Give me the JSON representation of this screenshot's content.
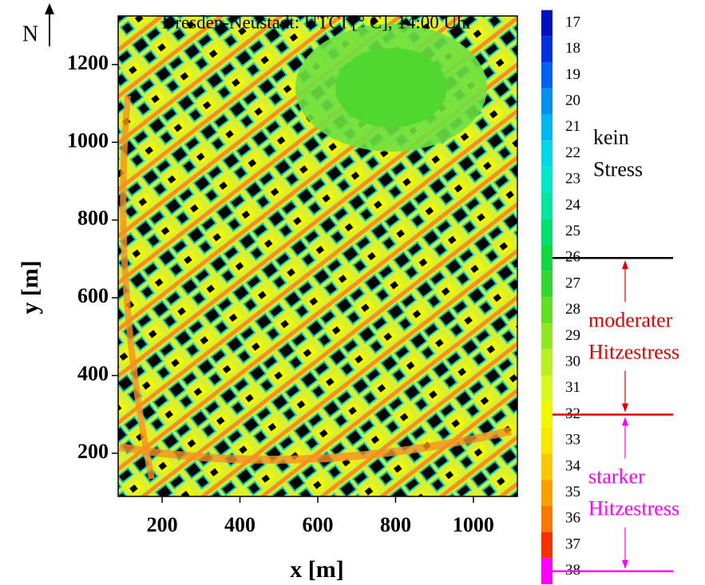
{
  "chart_data": {
    "type": "heatmap",
    "title": "Dresden-Neustadt: UTCI [° C], 14:00 Uhr",
    "xlabel": "x [m]",
    "ylabel": "y [m]",
    "north": "N",
    "xlim": [
      87,
      1113
    ],
    "ylim": [
      89,
      1325
    ],
    "xticks": [
      200,
      400,
      600,
      800,
      1000
    ],
    "yticks": [
      200,
      400,
      600,
      800,
      1000,
      1200
    ],
    "colorbar": {
      "levels": [
        17,
        18,
        19,
        20,
        21,
        22,
        23,
        24,
        25,
        26,
        27,
        28,
        29,
        30,
        31,
        32,
        33,
        34,
        35,
        36,
        37,
        38
      ],
      "colors": [
        "#0010c0",
        "#0030e0",
        "#0060f0",
        "#0090f0",
        "#00b8f0",
        "#00d8e8",
        "#00e8c8",
        "#00e8a0",
        "#00e070",
        "#10d840",
        "#30d830",
        "#60e020",
        "#90e820",
        "#b8f020",
        "#d8f820",
        "#f0f800",
        "#f8e800",
        "#f8c800",
        "#f8a000",
        "#f87800",
        "#f83000",
        "#ff00ff"
      ]
    },
    "thresholds": [
      {
        "value": 26,
        "color": "#000000"
      },
      {
        "value": 32,
        "color": "#e00000"
      },
      {
        "value": 38,
        "color": "#ff00ff"
      }
    ],
    "zones": [
      {
        "lines": [
          "kein",
          "Stress"
        ],
        "color": "#000000"
      },
      {
        "lines": [
          "moderater",
          "Hitzestress"
        ],
        "color": "#e00000"
      },
      {
        "lines": [
          "starker",
          "Hitzestress"
        ],
        "color": "#ff00ff"
      }
    ]
  }
}
